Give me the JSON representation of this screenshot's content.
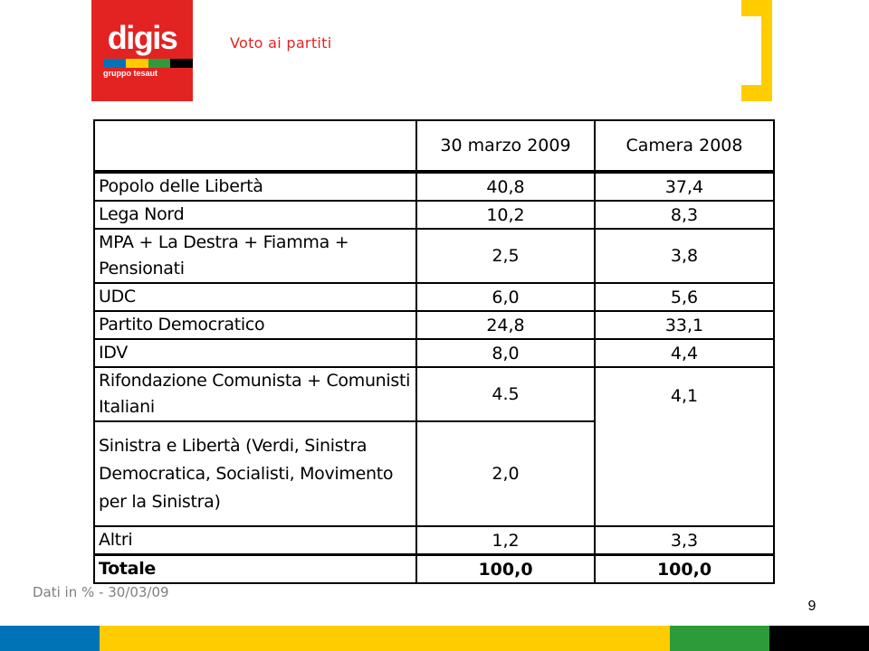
{
  "header": {
    "logo_text": "digis",
    "logo_subtext": "gruppo tesaut",
    "title": "Voto ai partiti"
  },
  "table": {
    "headers": [
      "",
      "30 marzo 2009",
      "Camera 2008"
    ],
    "rows": [
      {
        "party": "Popolo delle Libertà",
        "v2009": "40,8",
        "v2008": "37,4"
      },
      {
        "party": "Lega Nord",
        "v2009": "10,2",
        "v2008": "8,3"
      },
      {
        "party": "MPA + La Destra + Fiamma + Pensionati",
        "v2009": "2,5",
        "v2008": "3,8"
      },
      {
        "party": "UDC",
        "v2009": "6,0",
        "v2008": "5,6"
      },
      {
        "party": "Partito Democratico",
        "v2009": "24,8",
        "v2008": "33,1"
      },
      {
        "party": "IDV",
        "v2009": "8,0",
        "v2008": "4,4"
      },
      {
        "party": "Rifondazione Comunista + Comunisti Italiani",
        "v2009": "4.5",
        "v2008": "4,1"
      },
      {
        "party": "Sinistra e Libertà (Verdi, Sinistra Democratica, Socialisti, Movimento per la Sinistra)",
        "v2009": "2,0",
        "v2008": ""
      },
      {
        "party": "Altri",
        "v2009": "1,2",
        "v2008": "3,3"
      },
      {
        "party": "Totale",
        "v2009": "100,0",
        "v2008": "100,0"
      }
    ]
  },
  "footnote": "Dati in % - 30/03/09",
  "page_number": "9",
  "colors": {
    "brand_red": "#e32322",
    "accent_yellow": "#ffcc00",
    "footnote_gray": "#7f7f7f",
    "stripe_blue": "#0073b7",
    "stripe_green": "#2e9b3a",
    "stripe_black": "#000000"
  }
}
